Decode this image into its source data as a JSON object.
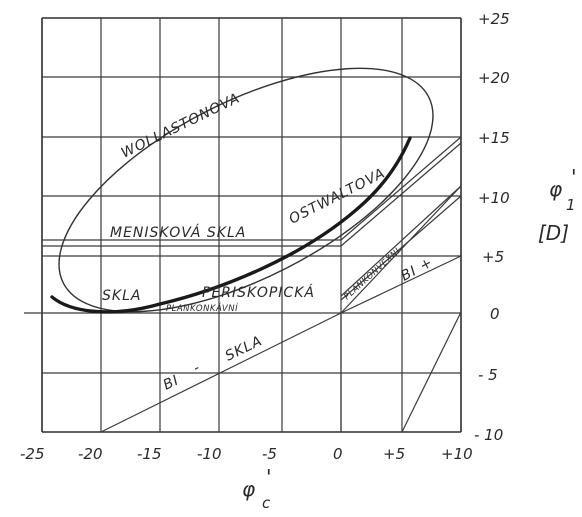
{
  "axes": {
    "x_label_symbol": "φ",
    "x_label_prime": "'",
    "x_label_sub": "c",
    "y_label_symbol": "φ",
    "y_label_prime": "'",
    "y_label_sub": "1",
    "y_unit": "[D]"
  },
  "x_ticks": [
    "-25",
    "-20",
    "-15",
    "-10",
    "-5",
    "0",
    "+5",
    "+10"
  ],
  "y_ticks": [
    "+25",
    "+20",
    "+15",
    "+10",
    "+5",
    "0",
    "- 5",
    "- 10"
  ],
  "regions": {
    "wollaston": "WOLLASTONOVA",
    "ostwalt": "OSTWALTOVA",
    "meniscus": "MENISKOVÁ  SKLA",
    "skla": "SKLA",
    "periscopic": "PERISKOPICKÁ",
    "plano_concave": "PLANKONKÁVNÍ",
    "plano_convex": "PLANKONVEXNÍ",
    "biconvex": "BI +",
    "biconcave_prefix": "BI",
    "biconcave_dash": "-",
    "biconcave_suffix": "SKLA"
  }
}
